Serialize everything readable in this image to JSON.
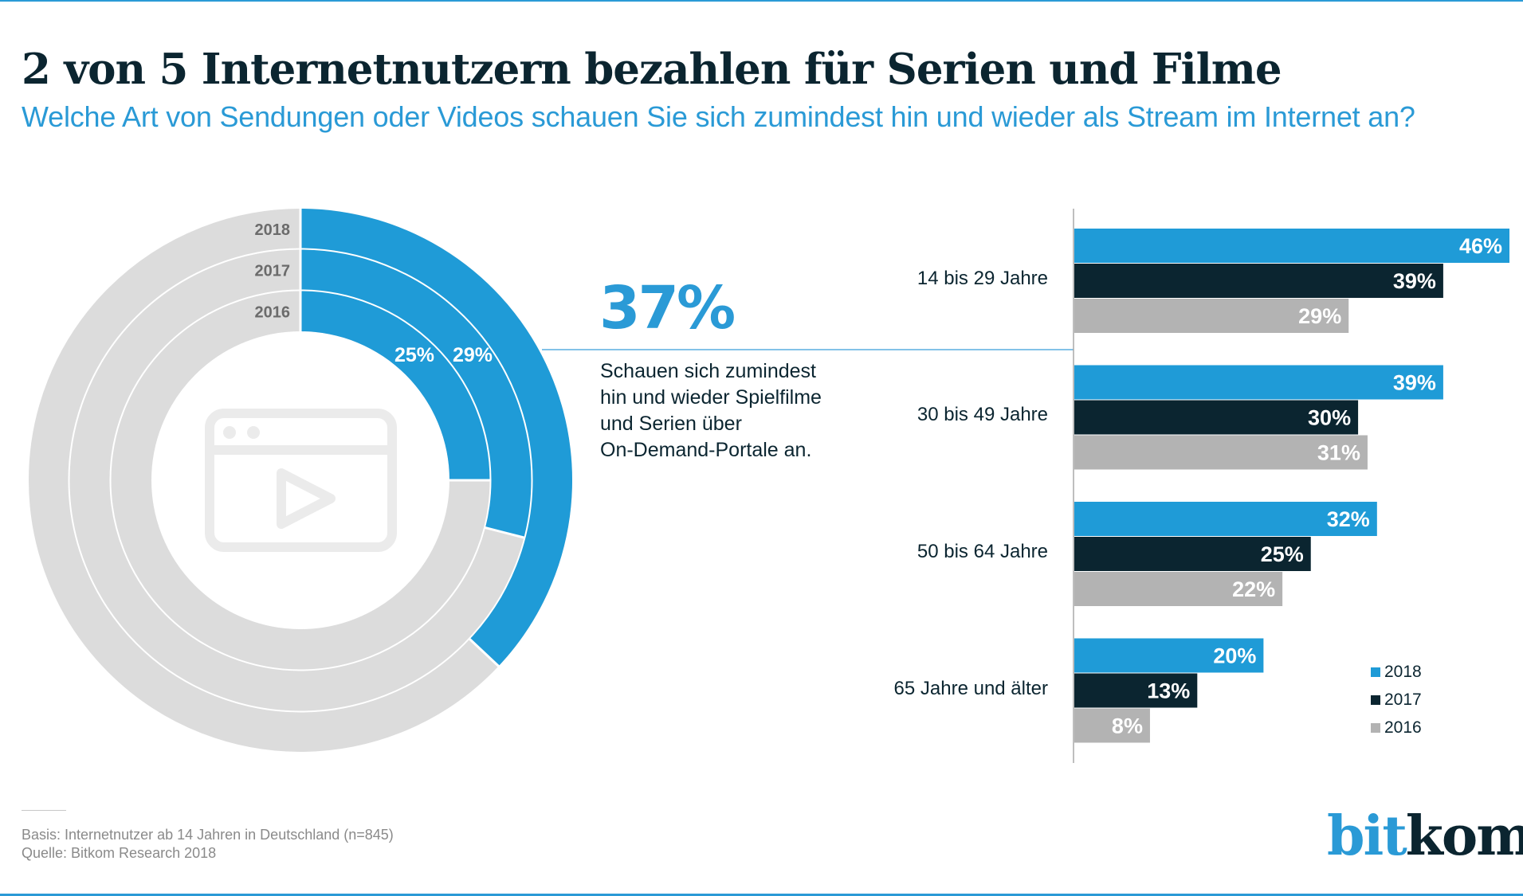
{
  "header": {
    "title": "2 von 5 Internetnutzern bezahlen für Serien und Filme",
    "subtitle": "Welche Art von Sendungen oder Videos schauen Sie sich zumindest hin und wieder als Stream im Internet an?"
  },
  "colors": {
    "accent": "#1f9bd7",
    "year_2018": "#1f9bd7",
    "year_2017": "#0b2530",
    "year_2016": "#b3b3b3",
    "ring_background": "#dcdcdc",
    "icon": "#ebebeb"
  },
  "highlight": {
    "value": "37%",
    "description_lines": [
      "Schauen sich zumindest",
      "hin und wieder Spielfilme",
      "und Serien über",
      "On-Demand-Portale an."
    ]
  },
  "center_icon": "video-player-window-icon",
  "chart_data": [
    {
      "type": "pie",
      "subtype": "nested-donut",
      "title": "Schauen sich zumindest hin und wieder Spielfilme und Serien über On-Demand-Portale an.",
      "rings": [
        {
          "year": "2016",
          "value": 25,
          "label": "25%"
        },
        {
          "year": "2017",
          "value": 29,
          "label": "29%"
        },
        {
          "year": "2018",
          "value": 37,
          "label": "37%"
        }
      ],
      "ring_order": "inner-to-outer",
      "unit": "%",
      "start": "12 o'clock, clockwise"
    },
    {
      "type": "bar",
      "orientation": "horizontal",
      "categories": [
        "14 bis 29 Jahre",
        "30  bis 49 Jahre",
        "50 bis 64 Jahre",
        "65 Jahre und älter"
      ],
      "series": [
        {
          "name": "2018",
          "values": [
            46,
            39,
            32,
            20
          ],
          "labels": [
            "46%",
            "39%",
            "32%",
            "20%"
          ]
        },
        {
          "name": "2017",
          "values": [
            39,
            30,
            25,
            13
          ],
          "labels": [
            "39%",
            "30%",
            "25%",
            "13%"
          ]
        },
        {
          "name": "2016",
          "values": [
            29,
            31,
            22,
            8
          ],
          "labels": [
            "29%",
            "31%",
            "22%",
            "8%"
          ]
        }
      ],
      "xlim": [
        0,
        46
      ],
      "unit": "%",
      "grid": false,
      "legend": {
        "placement": "bottom-right",
        "entries": [
          "2018",
          "2017",
          "2016"
        ]
      }
    }
  ],
  "footer": {
    "basis": "Basis: Internetnutzer ab 14 Jahren in Deutschland (n=845)",
    "source": "Quelle: Bitkom Research 2018"
  },
  "logo": {
    "part1": "bit",
    "part2": "kom"
  }
}
